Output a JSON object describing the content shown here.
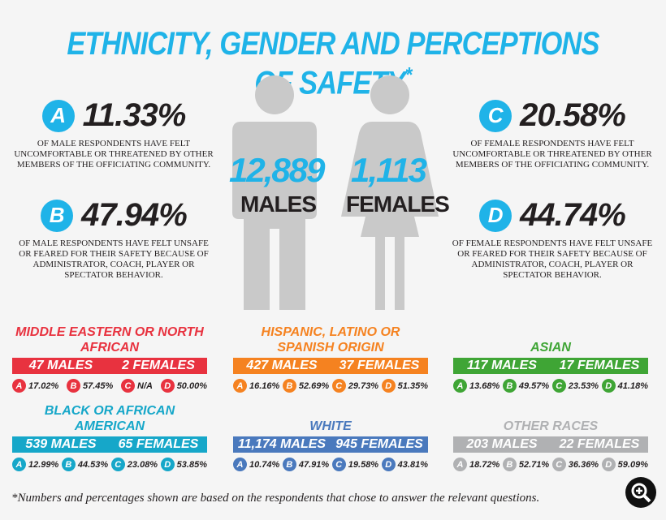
{
  "title": "ETHNICITY, GENDER AND PERCEPTIONS OF SAFETY",
  "title_mark": "*",
  "stats": [
    {
      "letter": "A",
      "value": "11.33%",
      "text": "Of male respondents have felt uncomfortable or threatened by other members of the officiating community."
    },
    {
      "letter": "B",
      "value": "47.94%",
      "text": "Of male respondents have felt unsafe or feared for their safety because of administrator, coach, player or spectator behavior."
    },
    {
      "letter": "C",
      "value": "20.58%",
      "text": "Of female respondents have felt uncomfortable or threatened by other members of the officiating community."
    },
    {
      "letter": "D",
      "value": "44.74%",
      "text": "Of female respondents have felt unsafe or feared for their safety because of administrator, coach, player or spectator behavior."
    }
  ],
  "males": {
    "count": "12,889",
    "label": "MALES"
  },
  "females": {
    "count": "1,113",
    "label": "FEMALES"
  },
  "groups": [
    {
      "title": "MIDDLE EASTERN OR NORTH AFRICAN",
      "color": "#e8323f",
      "males": "47 MALES",
      "females": "2 FEMALES",
      "stats": [
        {
          "l": "A",
          "v": "17.02%"
        },
        {
          "l": "B",
          "v": "57.45%"
        },
        {
          "l": "C",
          "v": "N/A"
        },
        {
          "l": "D",
          "v": "50.00%"
        }
      ]
    },
    {
      "title": "HISPANIC, LATINO OR SPANISH ORIGIN",
      "color": "#f58220",
      "males": "427 MALES",
      "females": "37 FEMALES",
      "stats": [
        {
          "l": "A",
          "v": "16.16%"
        },
        {
          "l": "B",
          "v": "52.69%"
        },
        {
          "l": "C",
          "v": "29.73%"
        },
        {
          "l": "D",
          "v": "51.35%"
        }
      ]
    },
    {
      "title": "ASIAN",
      "color": "#3fa535",
      "males": "117 MALES",
      "females": "17 FEMALES",
      "stats": [
        {
          "l": "A",
          "v": "13.68%"
        },
        {
          "l": "B",
          "v": "49.57%"
        },
        {
          "l": "C",
          "v": "23.53%"
        },
        {
          "l": "D",
          "v": "41.18%"
        }
      ]
    },
    {
      "title": "BLACK OR AFRICAN AMERICAN",
      "color": "#16a7c9",
      "males": "539 MALES",
      "females": "65 FEMALES",
      "stats": [
        {
          "l": "A",
          "v": "12.99%"
        },
        {
          "l": "B",
          "v": "44.53%"
        },
        {
          "l": "C",
          "v": "23.08%"
        },
        {
          "l": "D",
          "v": "53.85%"
        }
      ]
    },
    {
      "title": "WHITE",
      "color": "#4a79bd",
      "males": "11,174 MALES",
      "females": "945 FEMALES",
      "stats": [
        {
          "l": "A",
          "v": "10.74%"
        },
        {
          "l": "B",
          "v": "47.91%"
        },
        {
          "l": "C",
          "v": "19.58%"
        },
        {
          "l": "D",
          "v": "43.81%"
        }
      ]
    },
    {
      "title": "OTHER RACES",
      "color": "#b0b1b3",
      "males": "203 MALES",
      "females": "22 FEMALES",
      "stats": [
        {
          "l": "A",
          "v": "18.72%"
        },
        {
          "l": "B",
          "v": "52.71%"
        },
        {
          "l": "C",
          "v": "36.36%"
        },
        {
          "l": "D",
          "v": "59.09%"
        }
      ]
    }
  ],
  "footnote": "*Numbers and percentages shown are based on the respondents that chose to answer the relevant questions.",
  "zoom_icon": "zoom-in-icon"
}
